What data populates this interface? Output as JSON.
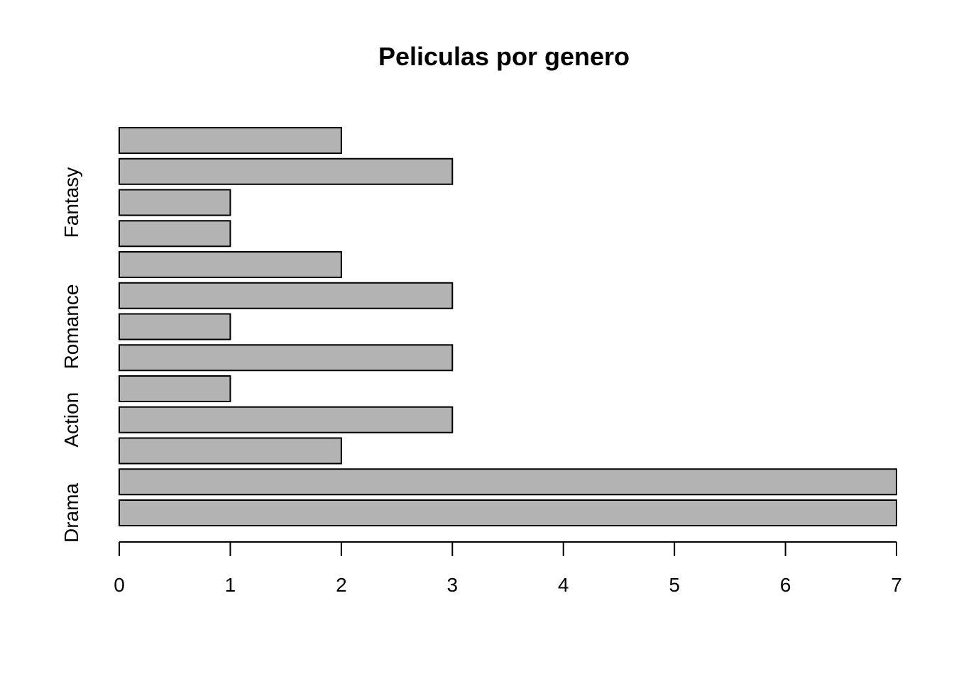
{
  "chart_data": {
    "type": "bar",
    "orientation": "horizontal",
    "title": "Peliculas por genero",
    "xlabel": "",
    "ylabel": "",
    "xlim": [
      0,
      7
    ],
    "x_ticks": [
      "0",
      "1",
      "2",
      "3",
      "4",
      "5",
      "6",
      "7"
    ],
    "values": [
      7,
      7,
      2,
      3,
      1,
      3,
      1,
      3,
      2,
      1,
      1,
      3,
      2
    ],
    "category_labels": [
      {
        "label": "Drama",
        "bar_index": 0
      },
      {
        "label": "Action",
        "bar_index": 3
      },
      {
        "label": "Romance",
        "bar_index": 6
      },
      {
        "label": "Fantasy",
        "bar_index": 10
      }
    ],
    "bar_fill": "#b3b3b3",
    "bar_stroke": "#000000",
    "grid": false,
    "legend": "none"
  }
}
